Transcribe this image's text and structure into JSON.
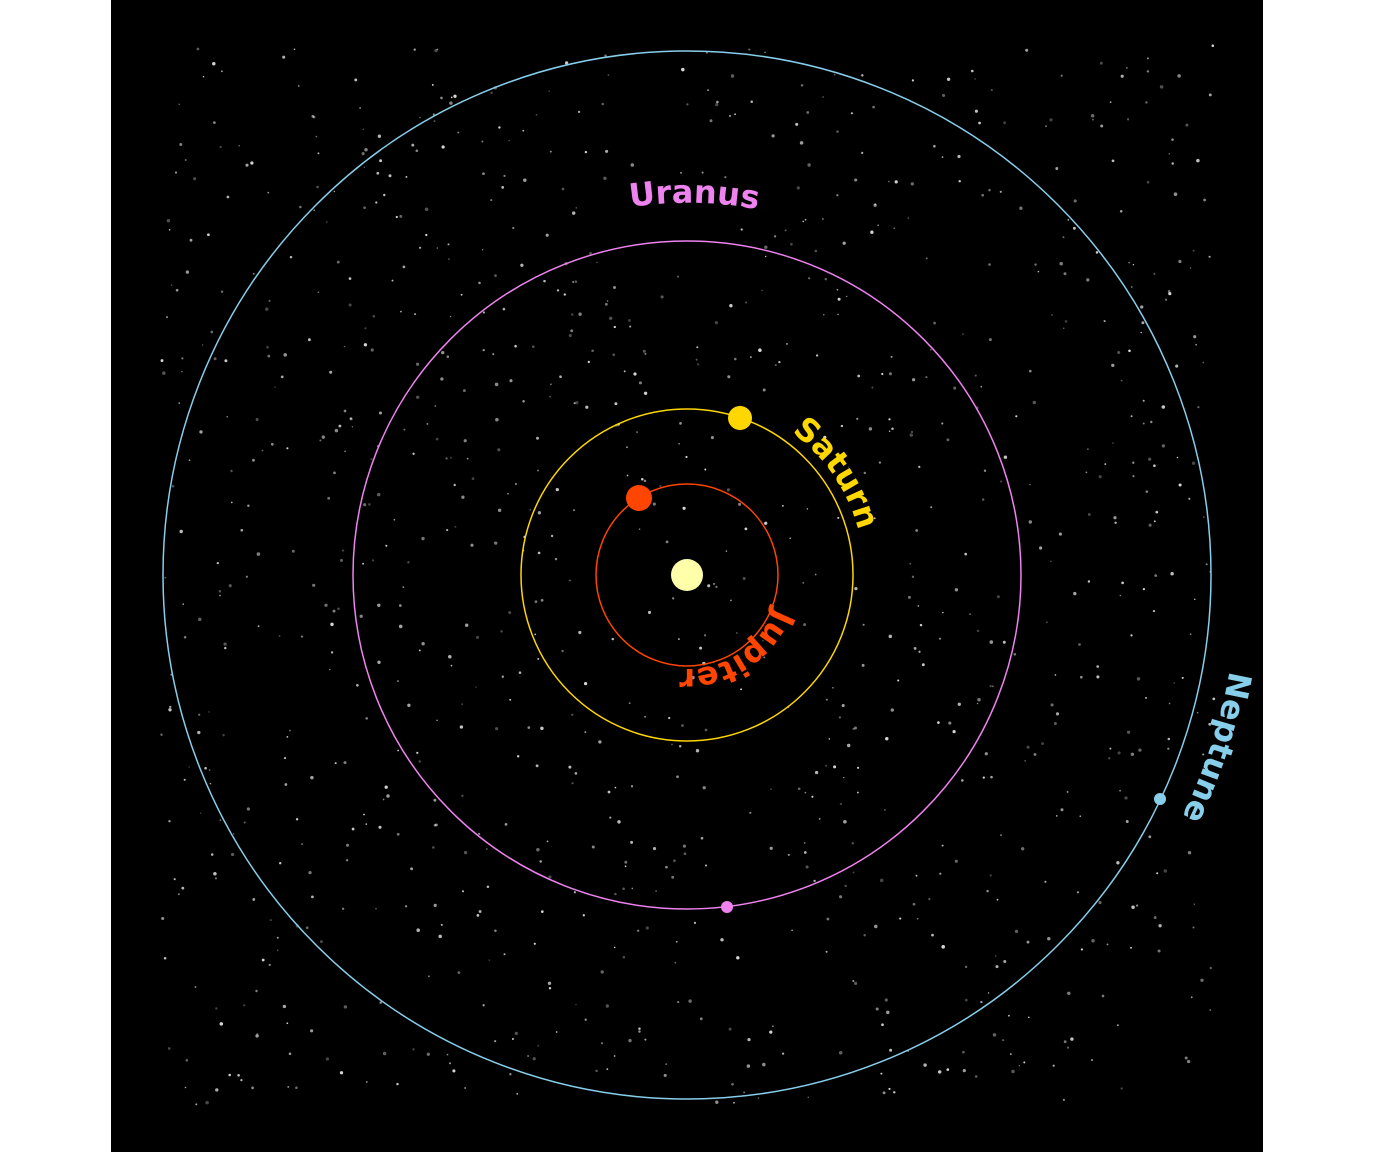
{
  "diagram": {
    "background": "#000000",
    "sun": {
      "color": "#ffffaa"
    },
    "planets": [
      {
        "id": "jupiter",
        "label": "Jupiter",
        "color": "#ff4500",
        "angle_deg": 105
      },
      {
        "id": "saturn",
        "label": "Saturn",
        "color": "#ffd700",
        "angle_deg": 72
      },
      {
        "id": "uranus",
        "label": "Uranus",
        "color": "#ee82ee",
        "angle_deg": -83
      },
      {
        "id": "neptune",
        "label": "Neptune",
        "color": "#87ceeb",
        "angle_deg": -26
      }
    ]
  }
}
